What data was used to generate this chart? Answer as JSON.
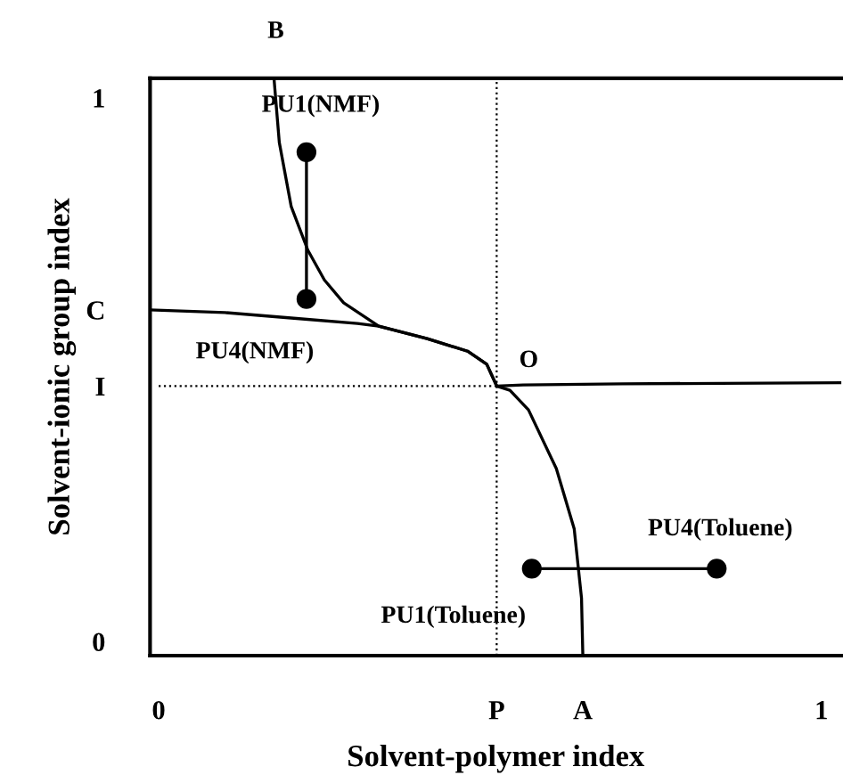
{
  "chart_data": {
    "type": "line",
    "xlabel": "Solvent-polymer index",
    "ylabel": "Solvent-ionic group index",
    "xlim": [
      -0.013,
      1.03
    ],
    "ylim": [
      -0.026,
      1.036
    ],
    "xticks": [
      0,
      {
        "value": 0.51,
        "label": "P"
      },
      {
        "value": 0.64,
        "label": "A"
      },
      1
    ],
    "yticks": [
      0,
      {
        "value": 0.47,
        "label": "I"
      },
      {
        "value": 0.61,
        "label": "C"
      },
      1
    ],
    "series": [
      {
        "color": "#000000",
        "marker": "none",
        "line_style": "solid",
        "x": [
          0.174,
          0.182,
          0.2,
          0.225,
          0.25,
          0.279,
          0.332,
          0.405,
          0.466,
          0.495,
          0.51,
          0.53,
          0.558,
          0.6,
          0.627,
          0.638,
          0.64
        ],
        "values": [
          1.036,
          0.918,
          0.8,
          0.72,
          0.665,
          0.623,
          0.58,
          0.557,
          0.534,
          0.51,
          0.47,
          0.462,
          0.426,
          0.318,
          0.207,
          0.08,
          -0.026
        ]
      },
      {
        "color": "#000000",
        "marker": "none",
        "line_style": "solid",
        "x": [
          -0.013,
          0.1,
          0.2,
          0.3,
          0.332,
          0.405,
          0.466,
          0.495,
          0.51,
          0.55,
          0.7,
          1.03
        ],
        "values": [
          0.61,
          0.605,
          0.595,
          0.585,
          0.58,
          0.557,
          0.534,
          0.51,
          0.47,
          0.472,
          0.474,
          0.476
        ]
      },
      {
        "color": "#000000",
        "marker": "none",
        "line_style": "dotted",
        "x": [
          0,
          0.51
        ],
        "values": [
          0.47,
          0.47
        ]
      },
      {
        "color": "#000000",
        "marker": "circle",
        "line_style": "solid",
        "x": [
          0.223,
          0.223
        ],
        "values": [
          0.9,
          0.63
        ]
      },
      {
        "color": "#000000",
        "marker": "circle",
        "line_style": "solid",
        "x": [
          0.563,
          0.842
        ],
        "values": [
          0.134,
          0.134
        ]
      }
    ],
    "ref_lines": [
      {
        "axis": "x",
        "value": 0.51,
        "line_style": "dotted",
        "color": "#000000"
      }
    ],
    "annotations": [
      {
        "text": "PU1(NMF)",
        "x": 0.223,
        "y": 0.9
      },
      {
        "text": "PU4(NMF)",
        "x": 0.223,
        "y": 0.63
      },
      {
        "text": "PU4(Toluene)",
        "x": 0.842,
        "y": 0.134
      },
      {
        "text": "PU1(Toluene)",
        "x": 0.563,
        "y": 0.134
      },
      {
        "text": "B",
        "x": 0.174,
        "y": 1.036
      },
      {
        "text": "O",
        "x": 0.51,
        "y": 0.47
      }
    ]
  }
}
